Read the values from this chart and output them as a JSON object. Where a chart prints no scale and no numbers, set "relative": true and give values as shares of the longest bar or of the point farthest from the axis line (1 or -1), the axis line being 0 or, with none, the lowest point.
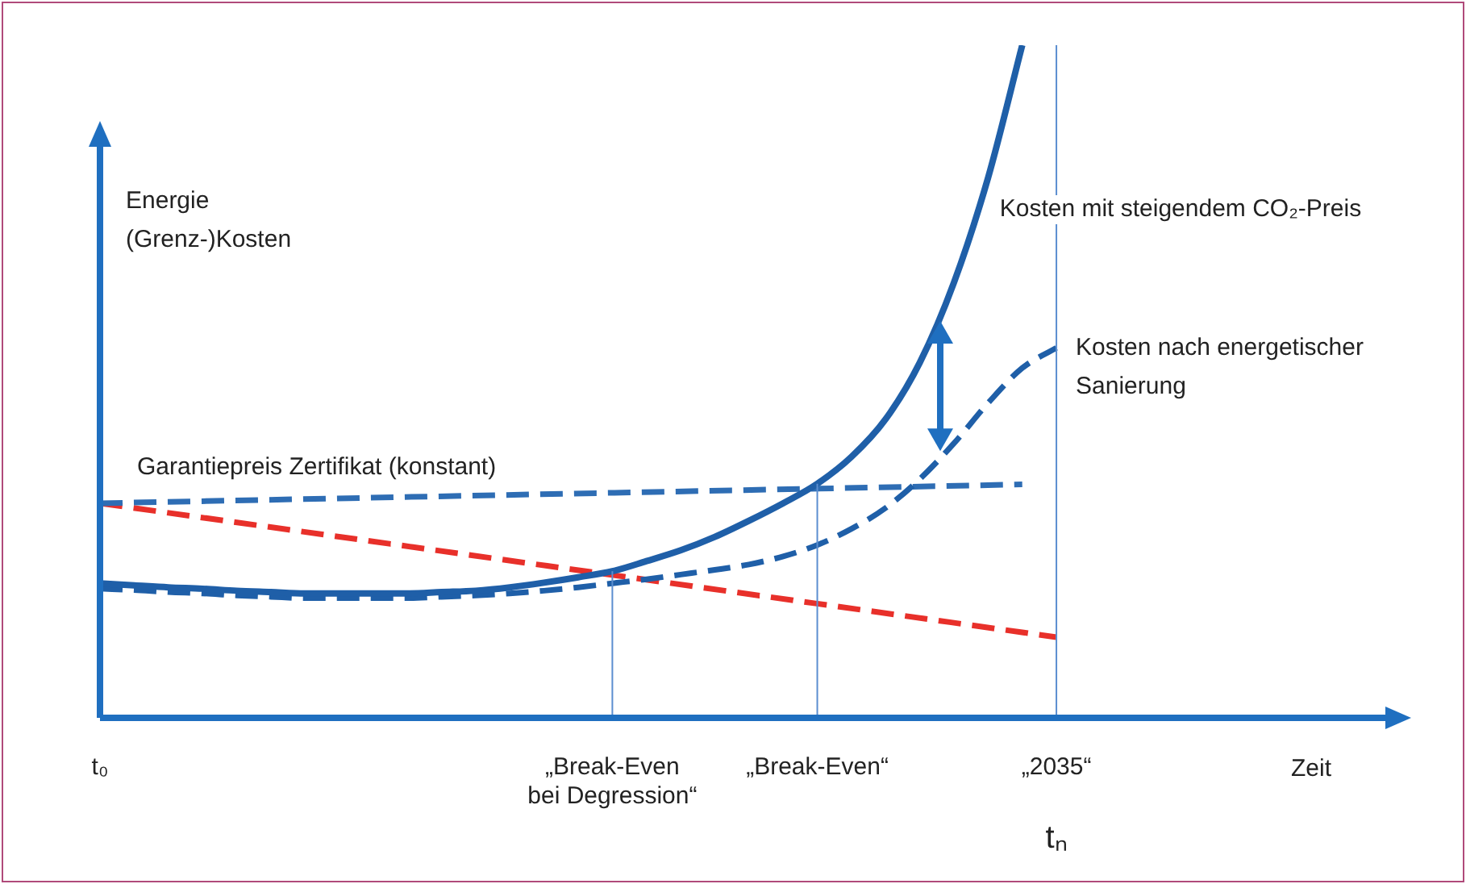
{
  "chart_data": {
    "type": "line",
    "relative": true,
    "ylabel": "Energie (Grenz-)Kosten",
    "categories": [
      "t₀",
      null,
      null,
      null,
      null,
      null,
      null,
      null,
      null,
      null,
      null,
      null,
      null,
      null,
      null,
      "„Break-Even bei Degression“",
      null,
      null,
      null,
      null,
      null,
      "„Break-Even“",
      null,
      null,
      null,
      null,
      null,
      null,
      "„2035“"
    ],
    "series": [
      {
        "name": "Kosten mit steigendem CO₂-Preis",
        "color": "#1f5fa8",
        "line_style": "solid",
        "values": [
          0.2,
          0.197,
          0.194,
          0.192,
          0.189,
          0.187,
          0.185,
          0.185,
          0.185,
          0.185,
          0.187,
          0.189,
          0.194,
          0.201,
          0.209,
          0.218,
          0.233,
          0.249,
          0.269,
          0.293,
          0.319,
          0.348,
          0.388,
          0.444,
          0.528,
          0.647,
          0.803,
          1,
          null
        ]
      },
      {
        "name": "Kosten nach energetischer Sanierung",
        "color": "#1f5fa8",
        "line_style": "dashed",
        "values": [
          0.192,
          0.19,
          0.187,
          0.185,
          0.182,
          0.18,
          0.178,
          0.178,
          0.178,
          0.178,
          0.18,
          0.182,
          0.185,
          0.189,
          0.194,
          0.2,
          0.206,
          0.213,
          0.22,
          0.228,
          0.24,
          0.257,
          0.281,
          0.312,
          0.355,
          0.408,
          0.468,
          0.52,
          0.55
        ]
      },
      {
        "name": "Garantiepreis Zertifikat (konstant)",
        "color": "#2e6db4",
        "line_style": "dashed",
        "values": [
          0.319,
          null,
          null,
          null,
          null,
          null,
          null,
          null,
          null,
          null,
          null,
          null,
          null,
          null,
          null,
          null,
          null,
          null,
          null,
          null,
          null,
          null,
          null,
          null,
          null,
          null,
          null,
          0.347,
          null
        ]
      },
      {
        "color": "#e8302a",
        "line_style": "dashed",
        "values": [
          0.319,
          null,
          null,
          null,
          null,
          null,
          null,
          null,
          null,
          null,
          null,
          null,
          null,
          null,
          null,
          null,
          null,
          null,
          null,
          null,
          null,
          null,
          null,
          null,
          null,
          null,
          null,
          null,
          0.12
        ]
      }
    ],
    "ref_lines": [
      {
        "axis": "x",
        "value": "„Break-Even bei Degression“",
        "color": "#5b8ed0"
      },
      {
        "axis": "x",
        "value": "„Break-Even“",
        "color": "#5b8ed0"
      },
      {
        "axis": "x",
        "value": "„2035“",
        "color": "#5b8ed0"
      }
    ],
    "annotations": [
      "Zeit",
      "tₙ"
    ],
    "legend": false,
    "grid": false,
    "marker": "none"
  }
}
